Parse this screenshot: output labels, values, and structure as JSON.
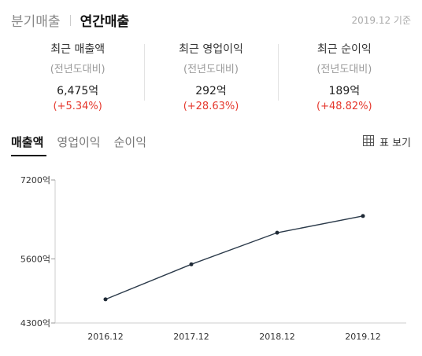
{
  "header": {
    "tabs": [
      {
        "label": "분기매출",
        "active": false
      },
      {
        "label": "연간매출",
        "active": true
      }
    ],
    "base_date": "2019.12 기준"
  },
  "summary": [
    {
      "label": "최근 매출액",
      "sub": "(전년도대비)",
      "value": "6,475억",
      "change": "(+5.34%)"
    },
    {
      "label": "최근 영업이익",
      "sub": "(전년도대비)",
      "value": "292억",
      "change": "(+28.63%)"
    },
    {
      "label": "최근 순이익",
      "sub": "(전년도대비)",
      "value": "189억",
      "change": "(+48.82%)"
    }
  ],
  "chart_tabs": [
    {
      "label": "매출액",
      "active": true
    },
    {
      "label": "영업이익",
      "active": false
    },
    {
      "label": "순이익",
      "active": false
    }
  ],
  "table_toggle": {
    "label": "표 보기",
    "icon": "table-icon"
  },
  "colors": {
    "accent_red": "#e5372c",
    "line": "#2b3a4a",
    "point": "#1f2a36"
  },
  "chart_data": {
    "type": "line",
    "categories": [
      "2016.12",
      "2017.12",
      "2018.12",
      "2019.12"
    ],
    "values": [
      4780,
      5490,
      6130,
      6470
    ],
    "unit": "억",
    "y_ticks": [
      {
        "value": 7200,
        "label": "7200억"
      },
      {
        "value": 5600,
        "label": "5600억"
      },
      {
        "value": 4300,
        "label": "4300억"
      }
    ],
    "ylim": [
      4300,
      7200
    ],
    "grid": false
  }
}
